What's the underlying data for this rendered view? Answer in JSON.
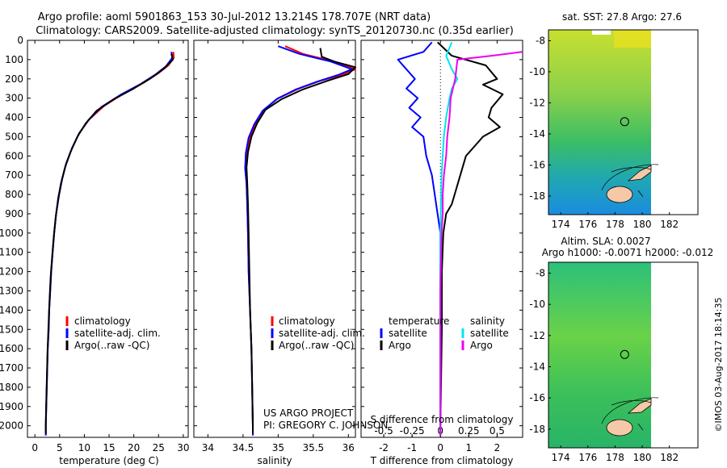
{
  "header": {
    "line1": "Argo profile: aoml 5901863_153 30-Jul-2012 13.214S 178.707E (NRT data)",
    "line2": "Climatology: CARS2009. Satellite-adjusted climatology: synTS_20120730.nc (0.35d earlier)"
  },
  "colors": {
    "climatology": "#ff0000",
    "satellite": "#0000ff",
    "argo": "#000000",
    "sat_salinity": "#00e5ee",
    "argo_salinity": "#ee00ee"
  },
  "depth_ticks": [
    "0",
    "100",
    "200",
    "300",
    "400",
    "500",
    "600",
    "700",
    "800",
    "900",
    "1000",
    "1100",
    "1200",
    "1300",
    "1400",
    "1500",
    "1600",
    "1700",
    "1800",
    "1900",
    "2000"
  ],
  "chart_data": [
    {
      "type": "line",
      "xlabel": "temperature (deg C)",
      "xticks": [
        "0",
        "5",
        "10",
        "15",
        "20",
        "25",
        "30"
      ],
      "xlim": [
        -1.5,
        31
      ],
      "ylim": [
        2060,
        0
      ],
      "legend": [
        "climatology",
        "satellite-adj. clim.",
        "Argo(..raw -QC)"
      ],
      "series": [
        {
          "name": "climatology",
          "points": [
            [
              28,
              60
            ],
            [
              28.1,
              90
            ],
            [
              27,
              130
            ],
            [
              25,
              170
            ],
            [
              22,
              220
            ],
            [
              18,
              275
            ],
            [
              14,
              340
            ],
            [
              11,
              410
            ],
            [
              9,
              480
            ],
            [
              7.5,
              560
            ],
            [
              6.3,
              640
            ],
            [
              5.5,
              720
            ],
            [
              4.9,
              800
            ],
            [
              4.3,
              900
            ],
            [
              3.9,
              1000
            ],
            [
              3.6,
              1100
            ],
            [
              3.3,
              1200
            ],
            [
              3.1,
              1300
            ],
            [
              2.9,
              1400
            ],
            [
              2.8,
              1500
            ],
            [
              2.6,
              1600
            ],
            [
              2.5,
              1700
            ],
            [
              2.4,
              1800
            ],
            [
              2.3,
              1900
            ],
            [
              2.2,
              2000
            ],
            [
              2.2,
              2050
            ]
          ]
        },
        {
          "name": "satellite-adj. clim.",
          "points": [
            [
              27.6,
              60
            ],
            [
              27.8,
              90
            ],
            [
              26.5,
              135
            ],
            [
              24.5,
              175
            ],
            [
              21.5,
              225
            ],
            [
              17.5,
              280
            ],
            [
              13.5,
              345
            ],
            [
              10.8,
              415
            ],
            [
              8.9,
              485
            ],
            [
              7.5,
              560
            ],
            [
              6.3,
              640
            ],
            [
              5.5,
              720
            ],
            [
              4.9,
              800
            ],
            [
              4.3,
              900
            ],
            [
              3.9,
              1000
            ],
            [
              3.6,
              1100
            ],
            [
              3.3,
              1200
            ],
            [
              3.1,
              1300
            ],
            [
              2.9,
              1400
            ],
            [
              2.8,
              1500
            ],
            [
              2.6,
              1600
            ],
            [
              2.5,
              1700
            ],
            [
              2.4,
              1800
            ],
            [
              2.3,
              1900
            ],
            [
              2.2,
              2000
            ],
            [
              2.2,
              2050
            ]
          ]
        },
        {
          "name": "Argo(..raw -QC)",
          "points": [
            [
              27.6,
              70
            ],
            [
              27.9,
              100
            ],
            [
              26.2,
              145
            ],
            [
              23.5,
              195
            ],
            [
              20,
              250
            ],
            [
              16,
              305
            ],
            [
              12.5,
              365
            ],
            [
              10.3,
              430
            ],
            [
              8.6,
              500
            ],
            [
              7.2,
              580
            ],
            [
              6.1,
              660
            ],
            [
              5.3,
              740
            ],
            [
              4.7,
              820
            ],
            [
              4.2,
              920
            ],
            [
              3.8,
              1020
            ],
            [
              3.5,
              1120
            ],
            [
              3.2,
              1220
            ],
            [
              3,
              1320
            ],
            [
              2.85,
              1420
            ],
            [
              2.7,
              1520
            ],
            [
              2.55,
              1620
            ],
            [
              2.45,
              1720
            ],
            [
              2.35,
              1820
            ],
            [
              2.25,
              1920
            ],
            [
              2.2,
              2000
            ],
            [
              2.2,
              2040
            ]
          ]
        }
      ]
    },
    {
      "type": "line",
      "xlabel": "salinity",
      "xticks": [
        "34",
        "34.5",
        "35",
        "35.5",
        "36"
      ],
      "xlim": [
        33.8,
        36.1
      ],
      "ylim": [
        2060,
        0
      ],
      "legend": [
        "climatology",
        "satellite-adj. clim.",
        "Argo(..raw -QC)"
      ],
      "annotation": [
        "US ARGO PROJECT",
        "PI: GREGORY C. JOHNSON"
      ],
      "series": [
        {
          "name": "climatology",
          "points": [
            [
              35.1,
              30
            ],
            [
              35.35,
              70
            ],
            [
              35.8,
              110
            ],
            [
              36.1,
              150
            ],
            [
              35.9,
              180
            ],
            [
              35.6,
              210
            ],
            [
              35.3,
              250
            ],
            [
              35,
              300
            ],
            [
              34.8,
              360
            ],
            [
              34.68,
              430
            ],
            [
              34.6,
              500
            ],
            [
              34.55,
              580
            ],
            [
              34.53,
              660
            ],
            [
              34.55,
              740
            ],
            [
              34.56,
              850
            ],
            [
              34.57,
              1000
            ],
            [
              34.58,
              1200
            ],
            [
              34.6,
              1400
            ],
            [
              34.62,
              1600
            ],
            [
              34.63,
              1800
            ],
            [
              34.64,
              2000
            ],
            [
              34.64,
              2050
            ]
          ]
        },
        {
          "name": "satellite-adj. clim.",
          "points": [
            [
              35,
              30
            ],
            [
              35.3,
              70
            ],
            [
              35.75,
              110
            ],
            [
              36.05,
              150
            ],
            [
              35.85,
              180
            ],
            [
              35.55,
              215
            ],
            [
              35.25,
              255
            ],
            [
              34.98,
              305
            ],
            [
              34.78,
              365
            ],
            [
              34.66,
              435
            ],
            [
              34.58,
              505
            ],
            [
              34.54,
              585
            ],
            [
              34.53,
              665
            ],
            [
              34.55,
              745
            ],
            [
              34.56,
              855
            ],
            [
              34.57,
              1005
            ],
            [
              34.58,
              1205
            ],
            [
              34.6,
              1405
            ],
            [
              34.62,
              1605
            ],
            [
              34.63,
              1805
            ],
            [
              34.64,
              2005
            ],
            [
              34.64,
              2050
            ]
          ]
        },
        {
          "name": "Argo(..raw -QC)",
          "points": [
            [
              35.6,
              40
            ],
            [
              35.62,
              85
            ],
            [
              35.8,
              110
            ],
            [
              36.1,
              140
            ],
            [
              36,
              175
            ],
            [
              35.7,
              210
            ],
            [
              35.35,
              255
            ],
            [
              35.05,
              305
            ],
            [
              34.82,
              360
            ],
            [
              34.7,
              430
            ],
            [
              34.62,
              500
            ],
            [
              34.57,
              580
            ],
            [
              34.55,
              660
            ],
            [
              34.56,
              740
            ],
            [
              34.57,
              850
            ],
            [
              34.58,
              1000
            ],
            [
              34.59,
              1200
            ],
            [
              34.6,
              1400
            ],
            [
              34.62,
              1600
            ],
            [
              34.63,
              1800
            ],
            [
              34.64,
              2000
            ],
            [
              34.64,
              2040
            ]
          ]
        }
      ]
    },
    {
      "type": "line",
      "xlabel": "T difference from climatology",
      "x2label": "S difference from climatology",
      "xticks": [
        "-2",
        "-1",
        "0",
        "1",
        "2"
      ],
      "x2ticks": [
        "-0.5",
        "-0.25",
        "0",
        "0.25",
        "0.5"
      ],
      "xlim": [
        -2.8,
        2.9
      ],
      "x2lim": [
        -0.7,
        0.725
      ],
      "ylim": [
        2060,
        0
      ],
      "legend": [
        {
          "heading": "temperature",
          "items": [
            "satellite",
            "Argo"
          ]
        },
        {
          "heading": "salinity",
          "items": [
            "satellite",
            "Argo"
          ]
        }
      ],
      "series": [
        {
          "name": "satellite",
          "group": "temperature",
          "points": [
            [
              -0.3,
              10
            ],
            [
              -0.6,
              60
            ],
            [
              -1.5,
              100
            ],
            [
              -1.2,
              150
            ],
            [
              -0.9,
              200
            ],
            [
              -1.2,
              250
            ],
            [
              -0.8,
              300
            ],
            [
              -1.1,
              350
            ],
            [
              -0.7,
              400
            ],
            [
              -1,
              450
            ],
            [
              -0.6,
              500
            ],
            [
              -0.5,
              600
            ],
            [
              -0.3,
              700
            ],
            [
              -0.2,
              800
            ],
            [
              -0.1,
              900
            ],
            [
              0,
              1000
            ],
            [
              0,
              1500
            ],
            [
              0,
              2050
            ]
          ]
        },
        {
          "name": "Argo",
          "group": "temperature",
          "points": [
            [
              -0.1,
              10
            ],
            [
              0.4,
              80
            ],
            [
              1.6,
              130
            ],
            [
              2,
              200
            ],
            [
              1.5,
              230
            ],
            [
              2.2,
              280
            ],
            [
              1.8,
              350
            ],
            [
              1.7,
              400
            ],
            [
              2.1,
              450
            ],
            [
              1.5,
              500
            ],
            [
              1.2,
              550
            ],
            [
              0.9,
              600
            ],
            [
              0.7,
              700
            ],
            [
              0.5,
              800
            ],
            [
              0.4,
              850
            ],
            [
              0.2,
              900
            ],
            [
              0.1,
              1000
            ],
            [
              0.05,
              1200
            ],
            [
              0.05,
              1500
            ],
            [
              0,
              2000
            ]
          ]
        },
        {
          "name": "satellite",
          "group": "salinity",
          "points": [
            [
              0.1,
              10
            ],
            [
              0.05,
              80
            ],
            [
              0.1,
              150
            ],
            [
              0.15,
              200
            ],
            [
              0.1,
              250
            ],
            [
              0.08,
              300
            ],
            [
              0.05,
              400
            ],
            [
              0.03,
              500
            ],
            [
              0.01,
              700
            ],
            [
              0,
              1000
            ],
            [
              0,
              2050
            ]
          ]
        },
        {
          "name": "Argo",
          "group": "salinity",
          "points": [
            [
              0.72,
              60
            ],
            [
              0.45,
              80
            ],
            [
              0.15,
              100
            ],
            [
              0.13,
              200
            ],
            [
              0.09,
              300
            ],
            [
              0.08,
              400
            ],
            [
              0.06,
              500
            ],
            [
              0.05,
              600
            ],
            [
              0.03,
              700
            ],
            [
              0.02,
              800
            ],
            [
              0.02,
              900
            ],
            [
              0.01,
              1000
            ],
            [
              0,
              1300
            ],
            [
              0,
              2050
            ]
          ]
        }
      ]
    },
    {
      "type": "heatmap",
      "title": "sat. SST: 27.8 Argo: 27.6",
      "xticks": [
        "174",
        "176",
        "178",
        "180",
        "182"
      ],
      "yticks": [
        "-8",
        "-10",
        "-12",
        "-14",
        "-16",
        "-18"
      ],
      "xlim": [
        173.1,
        184.1
      ],
      "ylim": [
        -19.2,
        -7.3
      ],
      "argo_position": [
        178.707,
        -13.214
      ]
    },
    {
      "type": "heatmap",
      "title": [
        "Altim. SLA: 0.0027",
        "Argo h1000: -0.0071 h2000: -0.012"
      ],
      "xticks": [
        "174",
        "176",
        "178",
        "180",
        "182"
      ],
      "yticks": [
        "-8",
        "-10",
        "-12",
        "-14",
        "-16",
        "-18"
      ],
      "xlim": [
        173.1,
        184.1
      ],
      "ylim": [
        -19.2,
        -7.3
      ],
      "argo_position": [
        178.707,
        -13.214
      ]
    }
  ],
  "credit": "©IMOS 03-Aug-2017 18:14:35"
}
